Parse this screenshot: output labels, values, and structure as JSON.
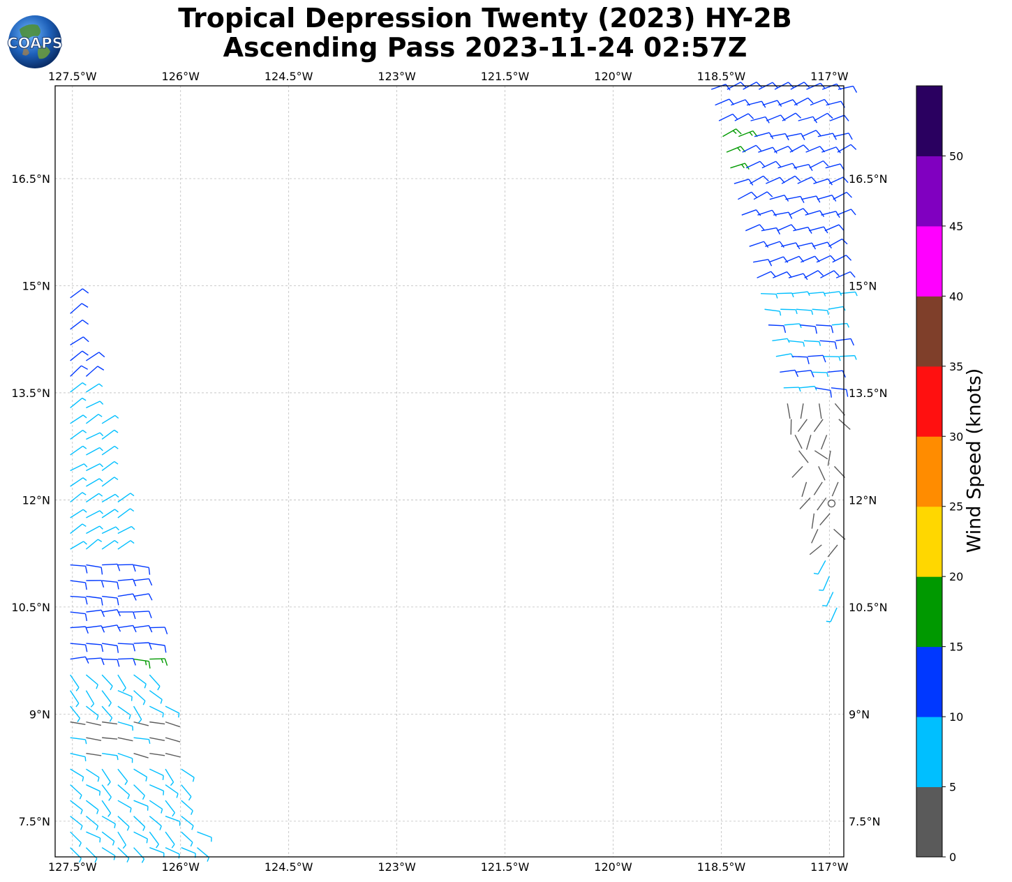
{
  "header": {
    "title_line1": "Tropical Depression Twenty (2023) HY-2B",
    "title_line2": "Ascending Pass 2023-11-24 02:57Z",
    "logo_text": "COAPS"
  },
  "map": {
    "lon_ticks": [
      "127.5°W",
      "126°W",
      "124.5°W",
      "123°W",
      "121.5°W",
      "120°W",
      "118.5°W",
      "117°W"
    ],
    "lat_ticks": [
      "16.5°N",
      "15°N",
      "13.5°N",
      "12°N",
      "10.5°N",
      "9°N",
      "7.5°N"
    ],
    "grid": true,
    "storm_center_marker": "circle-icon",
    "extent": {
      "lon_min": -127.74,
      "lon_max": -116.8,
      "lat_min": 7.0,
      "lat_max": 17.8
    }
  },
  "colorbar": {
    "label": "Wind Speed (knots)",
    "tick_labels": [
      "0",
      "5",
      "10",
      "15",
      "20",
      "25",
      "30",
      "35",
      "40",
      "45",
      "50"
    ],
    "bins": [
      {
        "min": 0,
        "max": 5,
        "color": "#5a5a5a"
      },
      {
        "min": 5,
        "max": 10,
        "color": "#00bfff"
      },
      {
        "min": 10,
        "max": 15,
        "color": "#0038ff"
      },
      {
        "min": 15,
        "max": 20,
        "color": "#009900"
      },
      {
        "min": 20,
        "max": 25,
        "color": "#ffd700"
      },
      {
        "min": 25,
        "max": 30,
        "color": "#ff8c00"
      },
      {
        "min": 30,
        "max": 35,
        "color": "#ff1010"
      },
      {
        "min": 35,
        "max": 40,
        "color": "#7f3f2a"
      },
      {
        "min": 40,
        "max": 45,
        "color": "#ff00ff"
      },
      {
        "min": 45,
        "max": 50,
        "color": "#8000c0"
      },
      {
        "min": 50,
        "max": 55,
        "color": "#2a0060"
      }
    ]
  }
}
